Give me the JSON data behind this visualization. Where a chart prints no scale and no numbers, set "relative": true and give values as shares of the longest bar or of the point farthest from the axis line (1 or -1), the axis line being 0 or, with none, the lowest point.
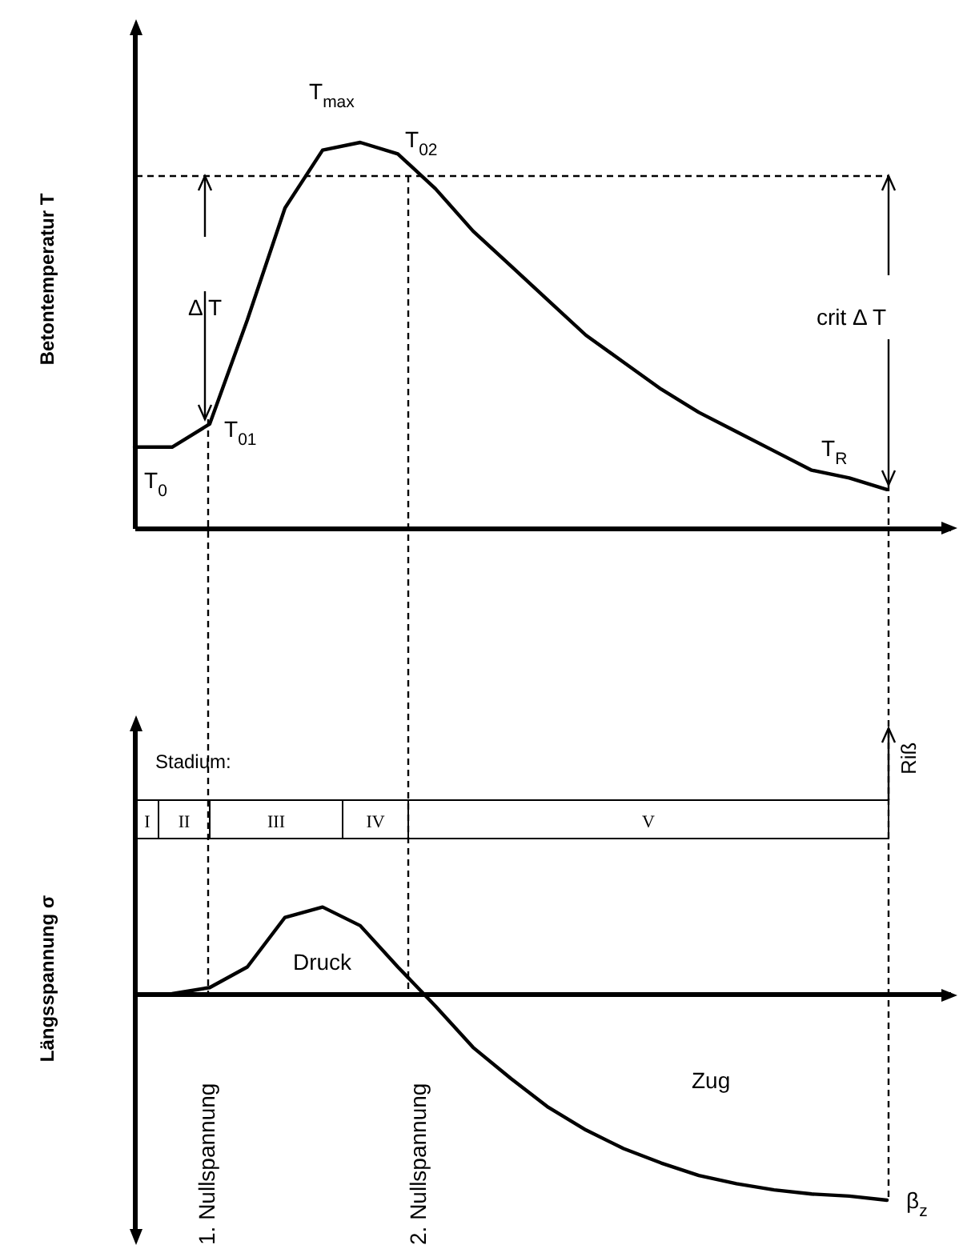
{
  "chart_data": [
    {
      "type": "line",
      "relative": true,
      "ylabel": "Betontemperatur T",
      "categories": [
        null,
        null,
        null,
        null,
        null,
        null,
        null,
        null,
        null,
        null,
        null,
        null,
        null,
        null,
        null,
        null,
        null,
        null,
        null,
        null,
        null
      ],
      "series": [
        {
          "color": "#000000",
          "values": [
            0.21,
            0.21,
            0.27,
            0.54,
            0.83,
            0.98,
            1.0,
            0.97,
            0.88,
            0.77,
            0.68,
            0.59,
            0.5,
            0.43,
            0.36,
            0.3,
            0.25,
            0.2,
            0.15,
            0.13,
            0.1
          ]
        }
      ],
      "annotations": [
        "T$_{max}$",
        "T$_{02}$",
        "T$_{01}$",
        "T$_{0}$",
        "T$_{R}$",
        "Δ T",
        "crit  Δ T"
      ]
    },
    {
      "type": "line",
      "relative": true,
      "ylabel": "Längsspannung  σ",
      "categories": [
        null,
        null,
        null,
        null,
        null,
        null,
        null,
        null,
        null,
        null,
        null,
        null,
        null,
        null,
        null,
        null,
        null,
        null,
        null,
        null,
        null
      ],
      "series": [
        {
          "color": "#000000",
          "values": [
            null,
            0,
            0.03,
            0.13,
            0.37,
            0.42,
            0.33,
            0.13,
            -0.06,
            -0.26,
            -0.41,
            -0.55,
            -0.66,
            -0.75,
            -0.82,
            -0.88,
            -0.92,
            -0.95,
            -0.97,
            -0.98,
            -1.0
          ]
        }
      ],
      "annotations": [
        "Stadium:",
        "I",
        "II",
        "III",
        "IV",
        "V",
        "Druck",
        "Zug",
        "1. Nullspannung",
        "2. Nullspannung",
        "Riß",
        "β$_{z}$"
      ]
    }
  ]
}
